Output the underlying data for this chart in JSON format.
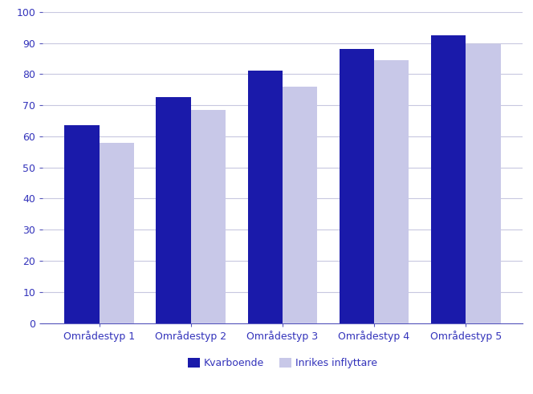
{
  "categories": [
    "Områdestyp 1",
    "Områdestyp 2",
    "Områdestyp 3",
    "Områdestyp 4",
    "Områdestyp 5"
  ],
  "kvarboende": [
    63.5,
    72.5,
    81.0,
    88.0,
    92.5
  ],
  "inflyttare": [
    58.0,
    68.5,
    76.0,
    84.5,
    89.5
  ],
  "kvarboende_color": "#1a1aaa",
  "inflyttare_color": "#c8c8e8",
  "background_color": "#ffffff",
  "plot_bg_color": "#ffffff",
  "ylim": [
    0,
    100
  ],
  "yticks": [
    0,
    10,
    20,
    30,
    40,
    50,
    60,
    70,
    80,
    90,
    100
  ],
  "legend_labels": [
    "Kvarboende",
    "Inrikes inflyttare"
  ],
  "grid_color": "#c8c8e0",
  "axis_color": "#5555bb",
  "tick_color": "#5555bb",
  "label_color": "#3333bb",
  "bar_width": 0.38,
  "figsize": [
    6.64,
    4.91
  ],
  "dpi": 100
}
